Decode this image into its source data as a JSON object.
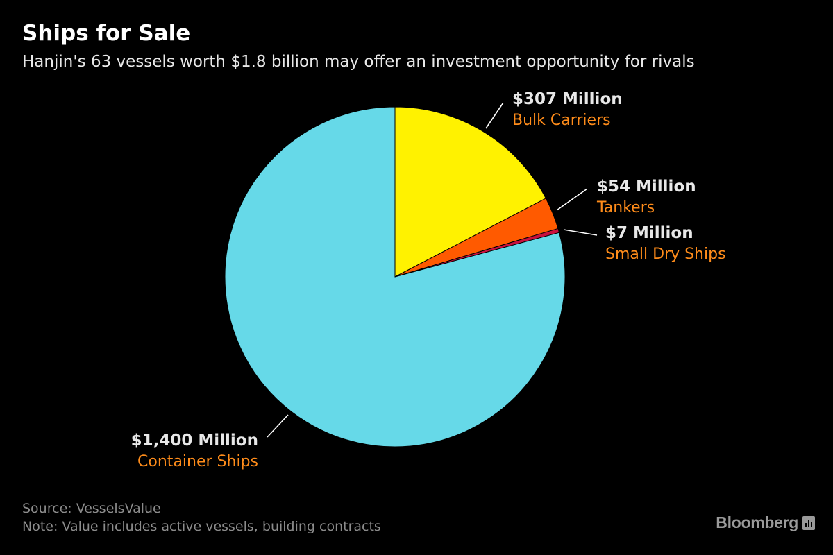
{
  "header": {
    "title": "Ships for Sale",
    "subtitle": "Hanjin's 63 vessels worth $1.8 billion may offer an investment opportunity for rivals"
  },
  "chart_data": {
    "type": "pie",
    "start_angle_deg": 0,
    "direction": "clockwise",
    "slices": [
      {
        "label": "Bulk Carriers",
        "value": 307,
        "value_label": "$307 Million",
        "color": "#fff200"
      },
      {
        "label": "Tankers",
        "value": 54,
        "value_label": "$54 Million",
        "color": "#ff5a00"
      },
      {
        "label": "Small Dry Ships",
        "value": 7,
        "value_label": "$7 Million",
        "color": "#c8103e"
      },
      {
        "label": "Container Ships",
        "value": 1400,
        "value_label": "$1,400 Million",
        "color": "#66d9e8"
      }
    ],
    "label_color": "#ff8c1a"
  },
  "footer": {
    "source": "Source: VesselsValue",
    "note": "Note: Value includes active vessels, building contracts",
    "brand": "Bloomberg"
  }
}
